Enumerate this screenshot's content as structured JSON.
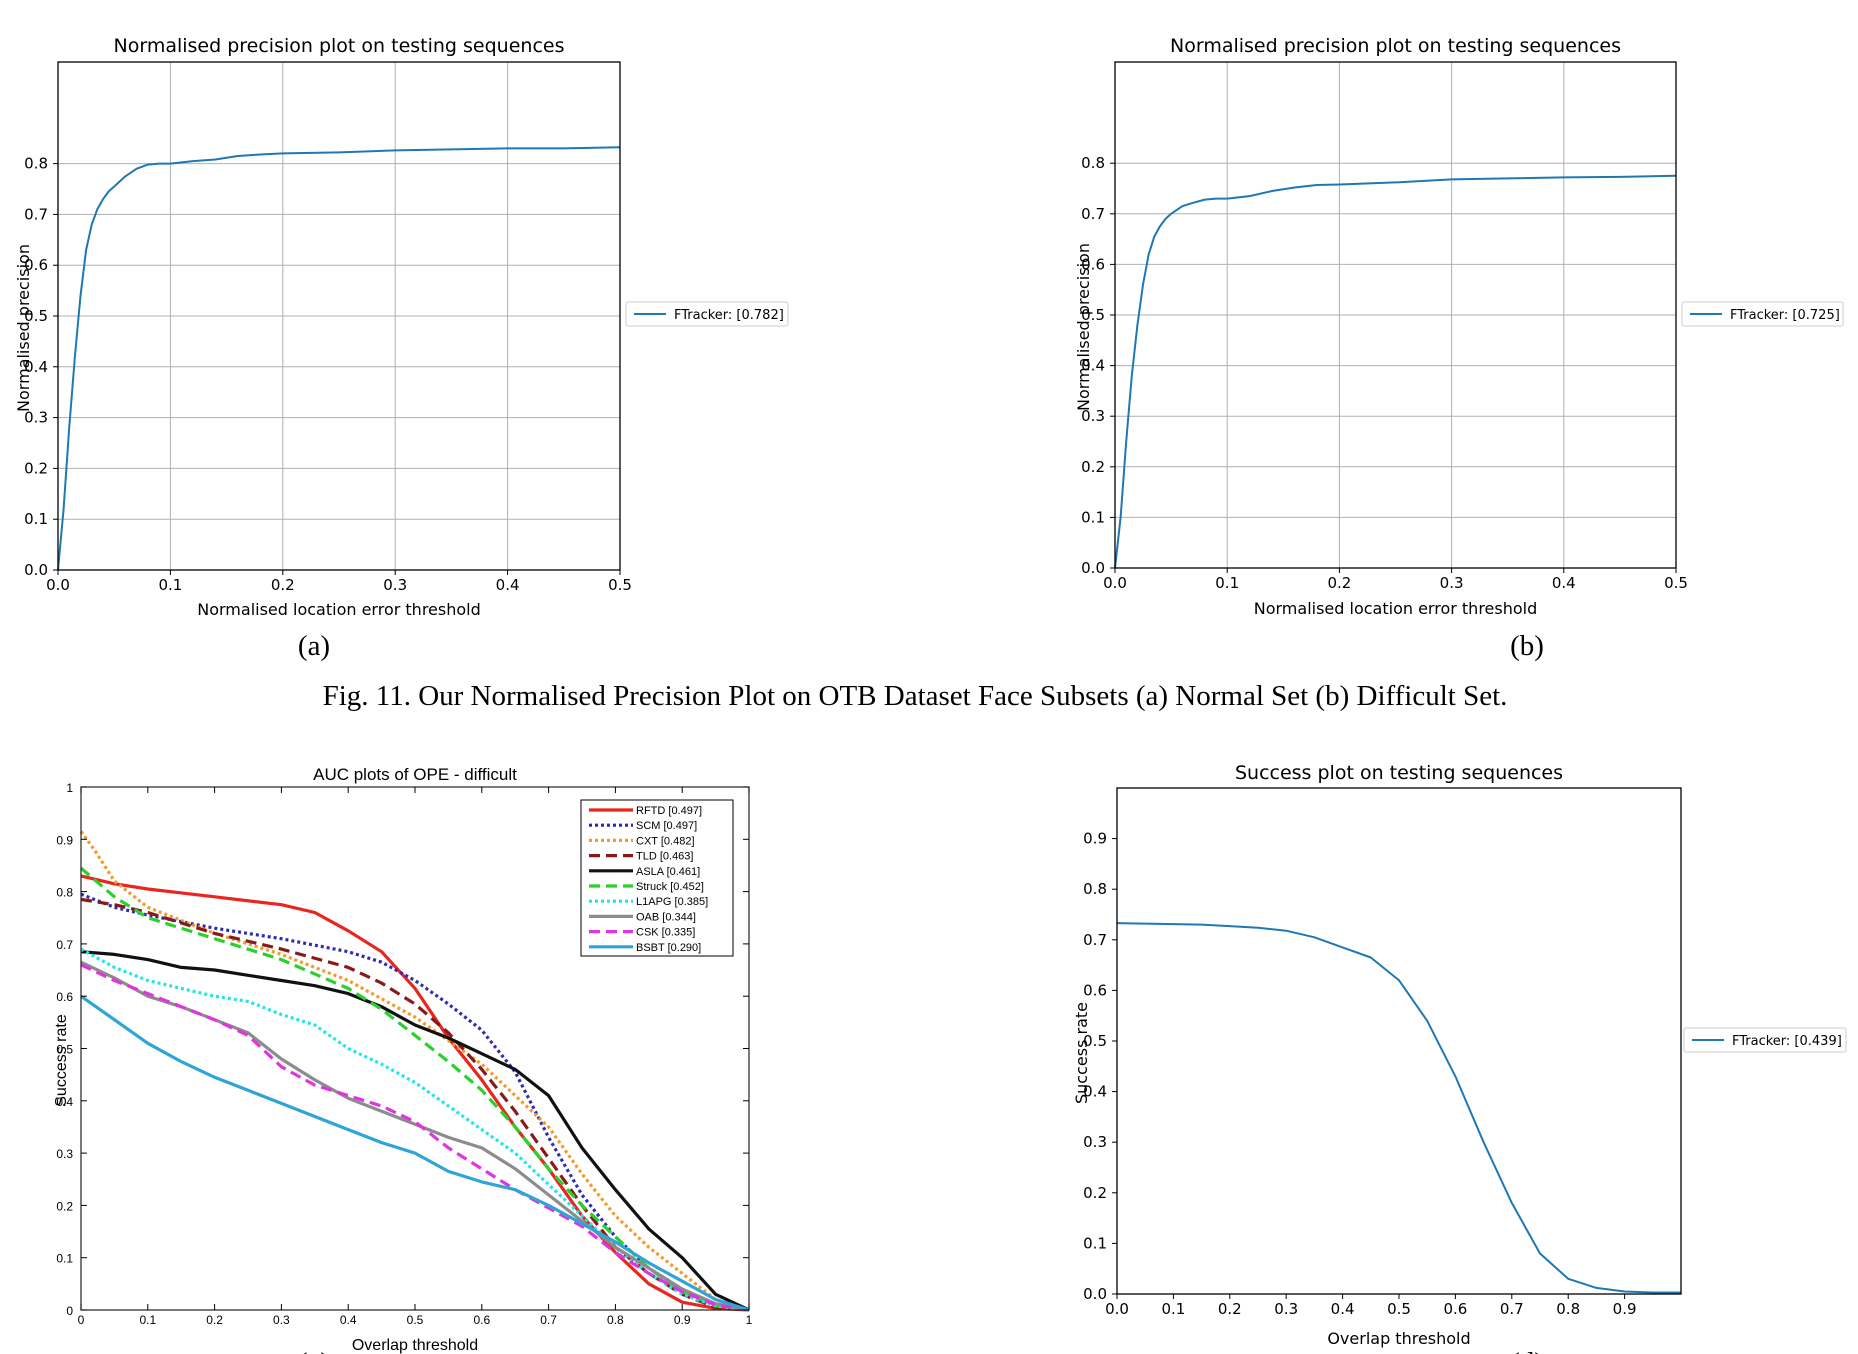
{
  "figure_caption": "Fig. 11.  Our Normalised Precision Plot on OTB Dataset Face Subsets (a) Normal Set (b) Difficult Set.",
  "chart_data": [
    {
      "id": "a",
      "type": "line",
      "style": "mpl",
      "title": "Normalised precision plot on testing sequences",
      "xlabel": "Normalised location error threshold",
      "ylabel": "Normalised precision",
      "xlim": [
        0,
        0.5
      ],
      "ylim": [
        0,
        1.0
      ],
      "xticks": [
        0,
        0.1,
        0.2,
        0.3,
        0.4,
        0.5
      ],
      "xtick_labels": [
        "0.0",
        "0.1",
        "0.2",
        "0.3",
        "0.4",
        "0.5"
      ],
      "yticks": [
        0,
        0.1,
        0.2,
        0.3,
        0.4,
        0.5,
        0.6,
        0.7,
        0.8
      ],
      "ytick_labels": [
        "0.0",
        "0.1",
        "0.2",
        "0.3",
        "0.4",
        "0.5",
        "0.6",
        "0.7",
        "0.8"
      ],
      "grid": true,
      "legend_position": "outside-right",
      "subcaption": "(a)",
      "series": [
        {
          "name": "FTracker: [0.782]",
          "color": "#1f77b4",
          "dash": "",
          "x": [
            0,
            0.005,
            0.01,
            0.015,
            0.02,
            0.025,
            0.03,
            0.035,
            0.04,
            0.045,
            0.05,
            0.06,
            0.07,
            0.08,
            0.09,
            0.1,
            0.12,
            0.14,
            0.16,
            0.18,
            0.2,
            0.25,
            0.3,
            0.35,
            0.4,
            0.45,
            0.5
          ],
          "y": [
            0,
            0.12,
            0.28,
            0.42,
            0.54,
            0.63,
            0.68,
            0.71,
            0.73,
            0.745,
            0.755,
            0.775,
            0.79,
            0.798,
            0.8,
            0.8,
            0.805,
            0.808,
            0.815,
            0.818,
            0.82,
            0.822,
            0.826,
            0.828,
            0.83,
            0.83,
            0.832
          ]
        }
      ]
    },
    {
      "id": "b",
      "type": "line",
      "style": "mpl",
      "title": "Normalised precision plot on testing sequences",
      "xlabel": "Normalised location error threshold",
      "ylabel": "Normalised precision",
      "xlim": [
        0,
        0.5
      ],
      "ylim": [
        0,
        1.0
      ],
      "xticks": [
        0,
        0.1,
        0.2,
        0.3,
        0.4,
        0.5
      ],
      "xtick_labels": [
        "0.0",
        "0.1",
        "0.2",
        "0.3",
        "0.4",
        "0.5"
      ],
      "yticks": [
        0,
        0.1,
        0.2,
        0.3,
        0.4,
        0.5,
        0.6,
        0.7,
        0.8
      ],
      "ytick_labels": [
        "0.0",
        "0.1",
        "0.2",
        "0.3",
        "0.4",
        "0.5",
        "0.6",
        "0.7",
        "0.8"
      ],
      "grid": true,
      "legend_position": "outside-right",
      "subcaption": "(b)",
      "series": [
        {
          "name": "FTracker: [0.725]",
          "color": "#1f77b4",
          "dash": "",
          "x": [
            0,
            0.005,
            0.01,
            0.015,
            0.02,
            0.025,
            0.03,
            0.035,
            0.04,
            0.045,
            0.05,
            0.06,
            0.07,
            0.08,
            0.09,
            0.1,
            0.12,
            0.14,
            0.16,
            0.18,
            0.2,
            0.25,
            0.3,
            0.35,
            0.4,
            0.45,
            0.5
          ],
          "y": [
            0,
            0.1,
            0.25,
            0.38,
            0.48,
            0.56,
            0.62,
            0.655,
            0.675,
            0.69,
            0.7,
            0.715,
            0.722,
            0.728,
            0.73,
            0.73,
            0.735,
            0.745,
            0.752,
            0.757,
            0.758,
            0.762,
            0.768,
            0.77,
            0.772,
            0.773,
            0.775
          ]
        }
      ]
    },
    {
      "id": "c",
      "type": "line",
      "style": "matlab",
      "title": "AUC plots of OPE - difficult",
      "xlabel": "Overlap threshold",
      "ylabel": "Success rate",
      "xlim": [
        0,
        1
      ],
      "ylim": [
        0,
        1
      ],
      "xticks": [
        0,
        0.1,
        0.2,
        0.3,
        0.4,
        0.5,
        0.6,
        0.7,
        0.8,
        0.9,
        1
      ],
      "xtick_labels": [
        "0",
        "0.1",
        "0.2",
        "0.3",
        "0.4",
        "0.5",
        "0.6",
        "0.7",
        "0.8",
        "0.9",
        "1"
      ],
      "yticks": [
        0,
        0.1,
        0.2,
        0.3,
        0.4,
        0.5,
        0.6,
        0.7,
        0.8,
        0.9,
        1
      ],
      "ytick_labels": [
        "0",
        "0.1",
        "0.2",
        "0.3",
        "0.4",
        "0.5",
        "0.6",
        "0.7",
        "0.8",
        "0.9",
        "1"
      ],
      "grid": false,
      "legend_position": "inside-top-right",
      "subcaption": "(c)",
      "series": [
        {
          "name": "RFTD [0.497]",
          "color": "#e8251f",
          "dash": "",
          "x": [
            0,
            0.05,
            0.1,
            0.2,
            0.3,
            0.35,
            0.4,
            0.45,
            0.5,
            0.55,
            0.6,
            0.65,
            0.7,
            0.75,
            0.8,
            0.85,
            0.9,
            0.95,
            1
          ],
          "y": [
            0.83,
            0.815,
            0.805,
            0.79,
            0.775,
            0.76,
            0.725,
            0.685,
            0.615,
            0.52,
            0.44,
            0.35,
            0.27,
            0.18,
            0.11,
            0.05,
            0.015,
            0.003,
            0
          ]
        },
        {
          "name": "SCM [0.497]",
          "color": "#2d2db4",
          "dash": "3,3",
          "x": [
            0,
            0.05,
            0.1,
            0.2,
            0.3,
            0.4,
            0.45,
            0.5,
            0.55,
            0.6,
            0.65,
            0.7,
            0.75,
            0.8,
            0.85,
            0.9,
            0.95,
            1
          ],
          "y": [
            0.795,
            0.77,
            0.755,
            0.73,
            0.71,
            0.685,
            0.665,
            0.63,
            0.585,
            0.535,
            0.455,
            0.33,
            0.22,
            0.14,
            0.08,
            0.04,
            0.01,
            0
          ]
        },
        {
          "name": "CXT [0.482]",
          "color": "#f39a2a",
          "dash": "3,3",
          "x": [
            0,
            0.02,
            0.05,
            0.1,
            0.15,
            0.2,
            0.3,
            0.4,
            0.5,
            0.6,
            0.7,
            0.75,
            0.8,
            0.85,
            0.9,
            0.95,
            1
          ],
          "y": [
            0.915,
            0.88,
            0.82,
            0.77,
            0.745,
            0.72,
            0.68,
            0.63,
            0.56,
            0.47,
            0.35,
            0.26,
            0.18,
            0.12,
            0.07,
            0.02,
            0
          ]
        },
        {
          "name": "TLD [0.463]",
          "color": "#8a1a1a",
          "dash": "11,6",
          "x": [
            0,
            0.05,
            0.1,
            0.2,
            0.3,
            0.4,
            0.45,
            0.5,
            0.55,
            0.6,
            0.65,
            0.7,
            0.75,
            0.8,
            0.85,
            0.9,
            0.95,
            1
          ],
          "y": [
            0.785,
            0.775,
            0.76,
            0.72,
            0.69,
            0.655,
            0.625,
            0.585,
            0.53,
            0.46,
            0.38,
            0.29,
            0.2,
            0.12,
            0.07,
            0.03,
            0.005,
            0
          ]
        },
        {
          "name": "ASLA [0.461]",
          "color": "#111111",
          "dash": "",
          "x": [
            0,
            0.05,
            0.1,
            0.15,
            0.2,
            0.25,
            0.3,
            0.35,
            0.4,
            0.45,
            0.5,
            0.55,
            0.6,
            0.65,
            0.7,
            0.75,
            0.8,
            0.85,
            0.9,
            0.95,
            1
          ],
          "y": [
            0.685,
            0.68,
            0.67,
            0.655,
            0.65,
            0.64,
            0.63,
            0.62,
            0.605,
            0.58,
            0.545,
            0.52,
            0.49,
            0.46,
            0.41,
            0.31,
            0.23,
            0.155,
            0.1,
            0.03,
            0
          ]
        },
        {
          "name": "Struck [0.452]",
          "color": "#29d12c",
          "dash": "11,6",
          "x": [
            0,
            0.05,
            0.1,
            0.2,
            0.3,
            0.4,
            0.45,
            0.5,
            0.55,
            0.6,
            0.65,
            0.7,
            0.75,
            0.8,
            0.85,
            0.9,
            0.95,
            1
          ],
          "y": [
            0.845,
            0.79,
            0.75,
            0.71,
            0.67,
            0.615,
            0.575,
            0.525,
            0.475,
            0.42,
            0.35,
            0.27,
            0.2,
            0.14,
            0.08,
            0.035,
            0.008,
            0
          ]
        },
        {
          "name": "L1APG [0.385]",
          "color": "#22e6e6",
          "dash": "3,3",
          "x": [
            0,
            0.05,
            0.1,
            0.15,
            0.2,
            0.25,
            0.3,
            0.35,
            0.4,
            0.45,
            0.5,
            0.55,
            0.6,
            0.65,
            0.7,
            0.75,
            0.8,
            0.85,
            0.9,
            0.95,
            1
          ],
          "y": [
            0.69,
            0.655,
            0.63,
            0.615,
            0.6,
            0.59,
            0.565,
            0.545,
            0.5,
            0.47,
            0.435,
            0.39,
            0.345,
            0.3,
            0.24,
            0.18,
            0.12,
            0.07,
            0.03,
            0.008,
            0
          ]
        },
        {
          "name": "OAB [0.344]",
          "color": "#8c8c8c",
          "dash": "",
          "x": [
            0,
            0.05,
            0.1,
            0.15,
            0.2,
            0.25,
            0.3,
            0.35,
            0.4,
            0.45,
            0.5,
            0.55,
            0.6,
            0.65,
            0.7,
            0.75,
            0.8,
            0.85,
            0.9,
            0.95,
            1
          ],
          "y": [
            0.665,
            0.635,
            0.6,
            0.58,
            0.555,
            0.53,
            0.48,
            0.44,
            0.405,
            0.38,
            0.355,
            0.33,
            0.31,
            0.27,
            0.22,
            0.17,
            0.12,
            0.08,
            0.04,
            0.012,
            0
          ]
        },
        {
          "name": "CSK [0.335]",
          "color": "#e034e0",
          "dash": "11,6",
          "x": [
            0,
            0.05,
            0.1,
            0.15,
            0.2,
            0.25,
            0.3,
            0.35,
            0.4,
            0.45,
            0.5,
            0.55,
            0.6,
            0.65,
            0.7,
            0.75,
            0.8,
            0.85,
            0.9,
            0.95,
            1
          ],
          "y": [
            0.66,
            0.63,
            0.605,
            0.58,
            0.555,
            0.525,
            0.465,
            0.43,
            0.41,
            0.39,
            0.36,
            0.31,
            0.27,
            0.23,
            0.195,
            0.16,
            0.11,
            0.07,
            0.035,
            0.01,
            0
          ]
        },
        {
          "name": "BSBT [0.290]",
          "color": "#2fa4d8",
          "dash": "",
          "x": [
            0,
            0.05,
            0.1,
            0.15,
            0.2,
            0.25,
            0.3,
            0.35,
            0.4,
            0.45,
            0.5,
            0.55,
            0.6,
            0.65,
            0.7,
            0.75,
            0.8,
            0.85,
            0.9,
            0.95,
            1
          ],
          "y": [
            0.6,
            0.555,
            0.51,
            0.475,
            0.445,
            0.42,
            0.395,
            0.37,
            0.345,
            0.32,
            0.3,
            0.265,
            0.245,
            0.23,
            0.2,
            0.165,
            0.13,
            0.09,
            0.055,
            0.02,
            0
          ]
        }
      ]
    },
    {
      "id": "d",
      "type": "line",
      "style": "mpl",
      "title": "Success plot on testing sequences",
      "xlabel": "Overlap threshold",
      "ylabel": "Success rate",
      "xlim": [
        0,
        1.0
      ],
      "ylim": [
        0,
        1.0
      ],
      "xticks": [
        0,
        0.1,
        0.2,
        0.3,
        0.4,
        0.5,
        0.6,
        0.7,
        0.8,
        0.9
      ],
      "xtick_labels": [
        "0.0",
        "0.1",
        "0.2",
        "0.3",
        "0.4",
        "0.5",
        "0.6",
        "0.7",
        "0.8",
        "0.9"
      ],
      "yticks": [
        0,
        0.1,
        0.2,
        0.3,
        0.4,
        0.5,
        0.6,
        0.7,
        0.8,
        0.9
      ],
      "ytick_labels": [
        "0.0",
        "0.1",
        "0.2",
        "0.3",
        "0.4",
        "0.5",
        "0.6",
        "0.7",
        "0.8",
        "0.9"
      ],
      "grid": false,
      "legend_position": "outside-right",
      "subcaption": "(d)",
      "series": [
        {
          "name": "FTracker: [0.439]",
          "color": "#1f77b4",
          "dash": "",
          "x": [
            0,
            0.05,
            0.1,
            0.15,
            0.2,
            0.25,
            0.3,
            0.35,
            0.4,
            0.45,
            0.5,
            0.55,
            0.6,
            0.65,
            0.7,
            0.75,
            0.8,
            0.85,
            0.9,
            0.95,
            1.0
          ],
          "y": [
            0.733,
            0.732,
            0.731,
            0.73,
            0.727,
            0.724,
            0.718,
            0.705,
            0.685,
            0.665,
            0.62,
            0.54,
            0.43,
            0.3,
            0.18,
            0.08,
            0.03,
            0.012,
            0.005,
            0.003,
            0.003
          ]
        }
      ]
    }
  ]
}
